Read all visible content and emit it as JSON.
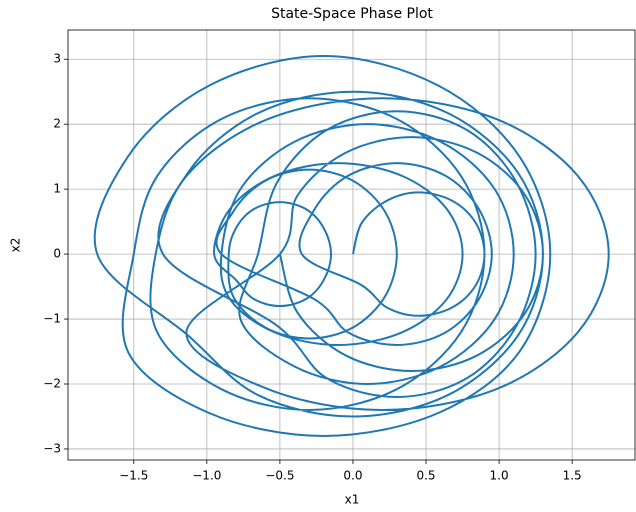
{
  "chart_data": {
    "type": "line",
    "title": "State-Space Phase Plot",
    "xlabel": "x1",
    "ylabel": "x2",
    "color": "#1f77b4",
    "grid": true,
    "xlim": [
      -1.95,
      1.93
    ],
    "ylim": [
      -3.17,
      3.45
    ],
    "xticks": [
      {
        "value": -1.5,
        "label": "−1.5"
      },
      {
        "value": -1.0,
        "label": "−1.0"
      },
      {
        "value": -0.5,
        "label": "−0.5"
      },
      {
        "value": 0,
        "label": "0.0"
      },
      0.5,
      {
        "value": 1,
        "label": "1.0"
      },
      1.5
    ],
    "yticks": [
      {
        "value": -3,
        "label": "−3"
      },
      {
        "value": -2,
        "label": "−2"
      },
      {
        "value": -1,
        "label": "−1"
      },
      0,
      1,
      2,
      3
    ],
    "x": [
      0,
      0.06,
      0.23,
      0.45,
      0.68,
      0.84,
      0.9,
      0.84,
      0.68,
      0.45,
      0.23,
      0.06,
      -0.35,
      -0.26,
      -0.03,
      0.3,
      0.63,
      0.86,
      0.95,
      0.86,
      0.63,
      0.3,
      -0.03,
      -0.26,
      -0.9,
      -0.82,
      -0.6,
      -0.3,
      0,
      0.22,
      0.3,
      0.22,
      0,
      -0.3,
      -0.6,
      -0.82,
      -0.85,
      -0.8,
      -0.68,
      -0.5,
      -0.32,
      -0.2,
      -0.15,
      -0.2,
      -0.32,
      -0.5,
      -0.68,
      -0.8,
      -0.95,
      -0.84,
      -0.53,
      -0.1,
      0.33,
      0.64,
      0.75,
      0.64,
      0.33,
      -0.1,
      -0.53,
      -0.84,
      -0.9,
      -0.77,
      -0.4,
      0.1,
      0.6,
      0.97,
      1.1,
      0.97,
      0.6,
      0.1,
      -0.4,
      -0.77,
      -0.65,
      -0.52,
      -0.18,
      0.3,
      0.78,
      1.12,
      1.25,
      1.12,
      0.78,
      0.3,
      -0.18,
      -0.52,
      -1.3,
      -1.13,
      -0.65,
      0,
      0.65,
      1.13,
      1.3,
      1.13,
      0.65,
      0,
      -0.65,
      -1.13,
      -1.75,
      -1.54,
      -0.98,
      -0.2,
      0.58,
      1.14,
      1.35,
      1.14,
      0.58,
      -0.2,
      -0.98,
      -1.54,
      -1.5,
      -1.34,
      -0.9,
      -0.3,
      0.3,
      0.74,
      0.9,
      0.74,
      0.3,
      -0.3,
      -0.9,
      -1.34,
      -1.35,
      -1.14,
      -0.58,
      0.2,
      0.98,
      1.54,
      1.75,
      1.54,
      0.98,
      0.2,
      -0.58,
      -1.14,
      -0.5,
      -0.38,
      -0.05,
      0.4,
      0.85,
      1.18,
      1.3,
      1.18,
      0.85,
      0.4,
      -0.05,
      -0.38,
      -0.5
    ],
    "values": [
      0,
      0.48,
      0.82,
      0.95,
      0.82,
      0.48,
      0,
      -0.48,
      -0.82,
      -0.95,
      -0.82,
      -0.48,
      0,
      0.7,
      1.21,
      1.4,
      1.21,
      0.7,
      0,
      -0.7,
      -1.21,
      -1.4,
      -1.21,
      -0.7,
      0,
      0.65,
      1.13,
      1.3,
      1.13,
      0.65,
      0,
      -0.65,
      -1.13,
      -1.3,
      -1.13,
      -0.65,
      0,
      0.4,
      0.69,
      0.8,
      0.69,
      0.4,
      0,
      -0.4,
      -0.69,
      -0.8,
      -0.69,
      -0.4,
      0,
      0.7,
      1.21,
      1.4,
      1.21,
      0.7,
      0,
      -0.7,
      -1.21,
      -1.4,
      -1.21,
      -0.7,
      0,
      1,
      1.73,
      2,
      1.73,
      1,
      0,
      -1,
      -1.73,
      -2,
      -1.73,
      -1,
      0,
      1.1,
      1.91,
      2.2,
      1.91,
      1.1,
      0,
      -1.1,
      -1.91,
      -2.2,
      -1.91,
      -1.1,
      0,
      1.25,
      2.17,
      2.5,
      2.17,
      1.25,
      0,
      -1.25,
      -2.17,
      -2.5,
      -2.17,
      -1.25,
      0,
      1.5,
      2.6,
      3.05,
      2.6,
      1.5,
      0,
      -1.5,
      -2.45,
      -2.8,
      -2.45,
      -1.5,
      0,
      1.2,
      2.08,
      2.4,
      2.08,
      1.2,
      0,
      -1.2,
      -2.08,
      -2.4,
      -2.08,
      -1.2,
      0,
      1.2,
      2.08,
      2.4,
      2.08,
      1.2,
      0,
      -1.2,
      -2.08,
      -2.4,
      -2.08,
      -1.2,
      0,
      0.9,
      1.56,
      1.8,
      1.56,
      0.9,
      0,
      -0.9,
      -1.56,
      -1.8,
      -1.56,
      -0.9,
      0
    ]
  }
}
